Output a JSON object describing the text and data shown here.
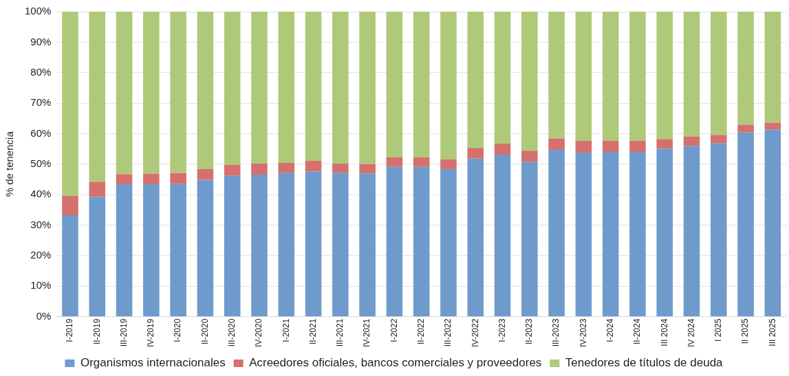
{
  "chart_data": {
    "type": "bar",
    "stacked": true,
    "ylabel": "% de tenencia",
    "ylim": [
      0,
      100
    ],
    "yticks": [
      {
        "value": 0,
        "label": "0%"
      },
      {
        "value": 10,
        "label": "10%"
      },
      {
        "value": 20,
        "label": "20%"
      },
      {
        "value": 30,
        "label": "30%"
      },
      {
        "value": 40,
        "label": "40%"
      },
      {
        "value": 50,
        "label": "50%"
      },
      {
        "value": 60,
        "label": "60%"
      },
      {
        "value": 70,
        "label": "70%"
      },
      {
        "value": 80,
        "label": "80%"
      },
      {
        "value": 90,
        "label": "90%"
      },
      {
        "value": 100,
        "label": "100%"
      }
    ],
    "grid": "y",
    "legend": "bottom",
    "categories": [
      "I-2019",
      "II-2019",
      "III-2019",
      "IV-2019",
      "I-2020",
      "II-2020",
      "III-2020",
      "IV-2020",
      "I-2021",
      "II-2021",
      "III-2021",
      "IV-2021",
      "I-2022",
      "II-2022",
      "III-2022",
      "IV-2022",
      "I-2023",
      "II-2023",
      "III-2023",
      "IV-2023",
      "I-2024",
      "II-2024",
      "III 2024",
      "IV 2024",
      "I 2025",
      "II 2025",
      "III 2025"
    ],
    "series": [
      {
        "name": "Organismos internacionales",
        "color": "#6f9bcc",
        "values": [
          33.3,
          39.3,
          43.4,
          43.4,
          43.6,
          44.9,
          46.2,
          46.6,
          47.1,
          47.6,
          47.1,
          46.9,
          49.1,
          49.1,
          48.4,
          51.8,
          53.1,
          50.7,
          54.7,
          53.8,
          54.0,
          54.0,
          55.1,
          56.0,
          56.9,
          60.4,
          61.3
        ]
      },
      {
        "name": "Acreedores oficiales, bancos comerciales y proveedores",
        "color": "#d5706c",
        "values": [
          6.3,
          4.9,
          3.3,
          3.5,
          3.5,
          3.5,
          3.6,
          3.6,
          3.3,
          3.5,
          3.1,
          3.1,
          3.1,
          3.1,
          3.2,
          3.5,
          3.6,
          3.7,
          3.7,
          3.8,
          3.6,
          3.6,
          3.1,
          3.1,
          2.7,
          2.5,
          2.3
        ]
      },
      {
        "name": "Tenedores de títulos de deuda",
        "color": "#afc97a",
        "values": [
          60.4,
          55.8,
          53.3,
          53.1,
          52.9,
          51.6,
          50.2,
          49.8,
          49.6,
          48.9,
          49.8,
          50.0,
          47.8,
          47.8,
          48.4,
          44.7,
          43.3,
          45.6,
          41.6,
          42.4,
          42.4,
          42.4,
          41.8,
          40.9,
          40.4,
          37.1,
          36.4
        ]
      }
    ]
  }
}
